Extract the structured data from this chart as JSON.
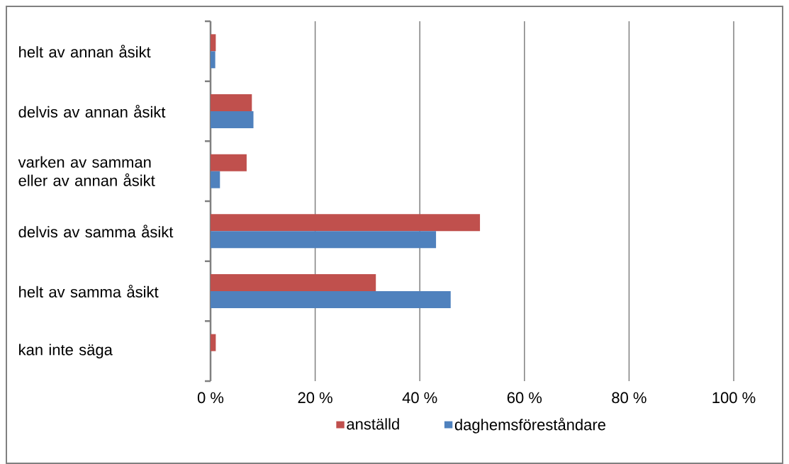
{
  "chart_data": {
    "type": "bar",
    "orientation": "horizontal",
    "categories": [
      "helt av annan åsikt",
      "delvis av annan åsikt",
      "varken av samman eller av annan åsikt",
      "delvis av samma åsikt",
      "helt av samma åsikt",
      "kan inte säga"
    ],
    "series": [
      {
        "name": "anställd",
        "color": "#c0504d",
        "values": [
          1.0,
          7.9,
          6.9,
          51.5,
          31.6,
          1.0
        ]
      },
      {
        "name": "daghemsföreståndare",
        "color": "#4f81bd",
        "values": [
          0.9,
          8.2,
          1.8,
          43.1,
          45.9,
          0
        ]
      }
    ],
    "xlim": [
      0,
      100
    ],
    "xticks": [
      {
        "value": 0,
        "label": "0 %"
      },
      {
        "value": 20,
        "label": "20 %"
      },
      {
        "value": 40,
        "label": "40 %"
      },
      {
        "value": 60,
        "label": "60 %"
      },
      {
        "value": 80,
        "label": "80 %"
      },
      {
        "value": 100,
        "label": "100 %"
      }
    ],
    "grid": "x",
    "legend": "bottom"
  }
}
